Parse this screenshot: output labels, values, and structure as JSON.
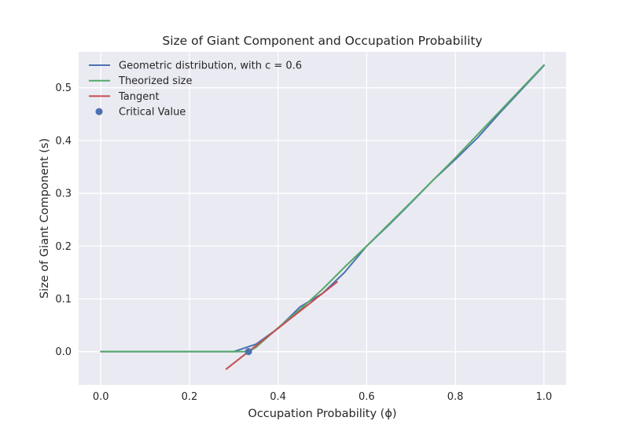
{
  "chart_data": {
    "type": "line",
    "title": "Size of Giant Component and Occupation Probability",
    "xlabel": "Occupation Probability (ϕ)",
    "ylabel": "Size of Giant Component (s)",
    "xlim": [
      -0.05,
      1.05
    ],
    "ylim": [
      -0.063,
      0.568
    ],
    "xticks": [
      0.0,
      0.2,
      0.4,
      0.6,
      0.8,
      1.0
    ],
    "xtick_labels": [
      "0.0",
      "0.2",
      "0.4",
      "0.6",
      "0.8",
      "1.0"
    ],
    "yticks": [
      0.0,
      0.1,
      0.2,
      0.3,
      0.4,
      0.5
    ],
    "ytick_labels": [
      "0.0",
      "0.1",
      "0.2",
      "0.3",
      "0.4",
      "0.5"
    ],
    "grid": true,
    "legend_position": "top-left",
    "series": [
      {
        "name": "Geometric distribution, with c = 0.6",
        "kind": "line",
        "color": "#4c72b0",
        "x": [
          0.0,
          0.05,
          0.1,
          0.15,
          0.2,
          0.25,
          0.3,
          0.35,
          0.4,
          0.45,
          0.5,
          0.55,
          0.6,
          0.65,
          0.7,
          0.75,
          0.8,
          0.85,
          0.9,
          0.95,
          1.0
        ],
        "y": [
          0.0,
          0.0,
          0.0,
          0.0,
          0.0,
          0.0,
          0.0,
          0.014,
          0.044,
          0.085,
          0.11,
          0.15,
          0.2,
          0.24,
          0.282,
          0.325,
          0.364,
          0.405,
          0.452,
          0.497,
          0.542
        ]
      },
      {
        "name": "Theorized size",
        "kind": "line",
        "color": "#55a868",
        "x": [
          0.0,
          0.1,
          0.2,
          0.3,
          0.3333,
          0.35,
          0.4,
          0.45,
          0.5,
          0.55,
          0.6,
          0.7,
          0.8,
          0.9,
          1.0
        ],
        "y": [
          0.0,
          0.0,
          0.0,
          0.0,
          0.0,
          0.008,
          0.045,
          0.08,
          0.118,
          0.16,
          0.2,
          0.283,
          0.367,
          0.455,
          0.543
        ]
      },
      {
        "name": "Tangent",
        "kind": "line",
        "color": "#c44e52",
        "x": [
          0.2833,
          0.5333
        ],
        "y": [
          -0.033,
          0.132
        ]
      },
      {
        "name": "Critical Value",
        "kind": "scatter",
        "color": "#4c72b0",
        "x": [
          0.3333
        ],
        "y": [
          0.0
        ]
      }
    ]
  }
}
